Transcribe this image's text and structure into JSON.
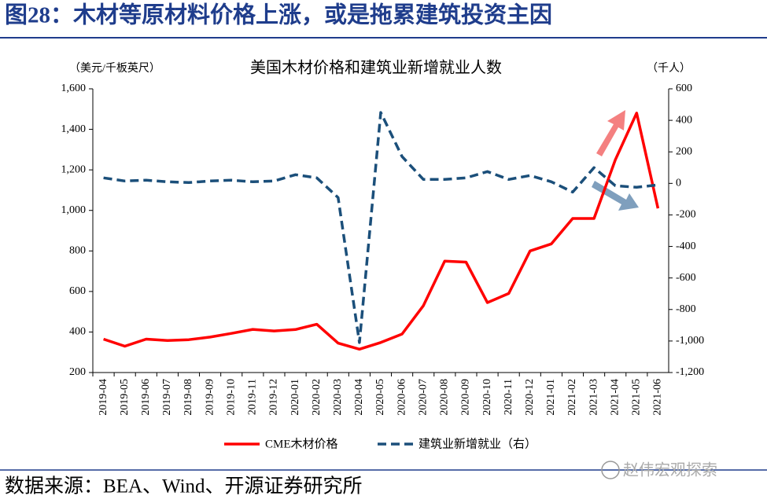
{
  "header": {
    "title": "图28：木材等原材料价格上涨，或是拖累建筑投资主因"
  },
  "chart_data": {
    "type": "line",
    "title": "美国木材价格和建筑业新增就业人数",
    "y_label": "（美元/千板英尺）",
    "y2_label": "（千人）",
    "categories": [
      "2019-04",
      "2019-05",
      "2019-06",
      "2019-07",
      "2019-08",
      "2019-09",
      "2019-10",
      "2019-11",
      "2019-12",
      "2020-01",
      "2020-02",
      "2020-03",
      "2020-04",
      "2020-05",
      "2020-06",
      "2020-07",
      "2020-08",
      "2020-09",
      "2020-10",
      "2020-11",
      "2020-12",
      "2021-01",
      "2021-02",
      "2021-03",
      "2021-04",
      "2021-05",
      "2021-06"
    ],
    "series": [
      {
        "name": "CME木材价格",
        "color": "#ff0000",
        "axis": "y",
        "values": [
          365,
          330,
          365,
          358,
          362,
          375,
          393,
          413,
          405,
          412,
          438,
          345,
          315,
          348,
          390,
          530,
          750,
          745,
          545,
          590,
          800,
          835,
          960,
          960,
          1250,
          1480,
          1010
        ]
      },
      {
        "name": "建筑业新增就业（右）",
        "color": "#1b4f7a",
        "axis": "y2",
        "dashed": true,
        "values": [
          35,
          15,
          20,
          10,
          5,
          15,
          20,
          10,
          15,
          55,
          35,
          -90,
          -1010,
          450,
          170,
          25,
          25,
          35,
          75,
          25,
          50,
          10,
          -55,
          100,
          -15,
          -25,
          -10
        ]
      }
    ],
    "ylim": [
      200,
      1600
    ],
    "yticks": [
      200,
      400,
      600,
      800,
      {
        "value": 1000,
        "label": "1,000"
      },
      {
        "value": 1200,
        "label": "1,200"
      },
      {
        "value": 1400,
        "label": "1,400"
      },
      {
        "value": 1600,
        "label": "1,600"
      }
    ],
    "y2lim": [
      -1200,
      600
    ],
    "y2ticks": [
      {
        "value": -1200,
        "label": "-1,200"
      },
      {
        "value": -1000,
        "label": "-1,000"
      },
      -800,
      -600,
      -400,
      -200,
      0,
      200,
      400,
      600
    ],
    "legend": "bottom"
  },
  "footer": {
    "source": "数据来源：BEA、Wind、开源证券研究所",
    "watermark": "赵伟宏观探索"
  }
}
